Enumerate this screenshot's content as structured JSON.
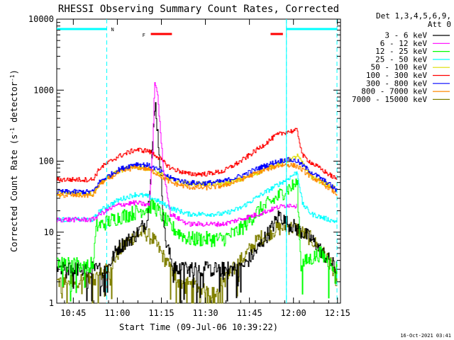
{
  "chart_data": {
    "type": "line",
    "title": "RHESSI Observing Summary Count Rates, Corrected",
    "xlabel": "Start Time (09-Jul-06 10:39:22)",
    "ylabel_main": "Corrected Count Rate (s",
    "ylabel_sup1": "-1",
    "ylabel_mid": " detector",
    "ylabel_sup2": "-1",
    "ylabel_end": ")",
    "timestamp": "16-Oct-2021 03:41",
    "legend_header_line1": "Det 1,3,4,5,6,9,",
    "legend_header_line2": "Att 0",
    "xlim": [
      10.656,
      12.267
    ],
    "ylim": [
      1,
      10000
    ],
    "yscale": "log",
    "x_ticks": [
      {
        "t": 10.75,
        "label": "10:45"
      },
      {
        "t": 11.0,
        "label": "11:00"
      },
      {
        "t": 11.25,
        "label": "11:15"
      },
      {
        "t": 11.5,
        "label": "11:30"
      },
      {
        "t": 11.75,
        "label": "11:45"
      },
      {
        "t": 12.0,
        "label": "12:00"
      },
      {
        "t": 12.25,
        "label": "12:15"
      }
    ],
    "y_ticks": [
      {
        "v": 1,
        "label": "1"
      },
      {
        "v": 10,
        "label": "10"
      },
      {
        "v": 100,
        "label": "100"
      },
      {
        "v": 1000,
        "label": "1000"
      },
      {
        "v": 10000,
        "label": "10000"
      }
    ],
    "annotations": {
      "night_label": "N",
      "flare_label": "F",
      "night_intervals": [
        [
          10.656,
          10.94
        ],
        [
          11.96,
          12.247
        ]
      ],
      "flare_intervals": [
        [
          11.19,
          11.31
        ],
        [
          11.87,
          11.94
        ]
      ],
      "saa_lines": [
        10.94,
        11.96,
        12.247
      ]
    },
    "series": [
      {
        "name": "3 - 6 keV",
        "color": "#000000",
        "points": [
          [
            10.656,
            3
          ],
          [
            10.94,
            3
          ],
          [
            11.0,
            6
          ],
          [
            11.1,
            9
          ],
          [
            11.17,
            15
          ],
          [
            11.2,
            200
          ],
          [
            11.215,
            650
          ],
          [
            11.24,
            100
          ],
          [
            11.27,
            8
          ],
          [
            11.32,
            3
          ],
          [
            11.7,
            3
          ],
          [
            11.8,
            6
          ],
          [
            11.88,
            12
          ],
          [
            11.92,
            18
          ],
          [
            11.95,
            14
          ],
          [
            12.0,
            12
          ],
          [
            12.1,
            8
          ],
          [
            12.2,
            4
          ],
          [
            12.247,
            3
          ]
        ]
      },
      {
        "name": "6 - 12 keV",
        "color": "#ff00ff",
        "points": [
          [
            10.656,
            15
          ],
          [
            10.86,
            15
          ],
          [
            10.9,
            18
          ],
          [
            11.0,
            24
          ],
          [
            11.1,
            26
          ],
          [
            11.18,
            24
          ],
          [
            11.2,
            150
          ],
          [
            11.21,
            1300
          ],
          [
            11.225,
            1000
          ],
          [
            11.26,
            80
          ],
          [
            11.3,
            18
          ],
          [
            11.4,
            13
          ],
          [
            11.6,
            13
          ],
          [
            11.8,
            18
          ],
          [
            11.9,
            22
          ],
          [
            11.96,
            24
          ],
          [
            12.0,
            24
          ],
          [
            12.02,
            23
          ]
        ]
      },
      {
        "name": "12 - 25 keV",
        "color": "#00ff00",
        "points": [
          [
            10.656,
            3.5
          ],
          [
            10.86,
            3.5
          ],
          [
            10.88,
            12
          ],
          [
            11.0,
            16
          ],
          [
            11.1,
            19
          ],
          [
            11.17,
            22
          ],
          [
            11.2,
            24
          ],
          [
            11.23,
            20
          ],
          [
            11.3,
            12
          ],
          [
            11.4,
            8
          ],
          [
            11.6,
            8
          ],
          [
            11.7,
            11
          ],
          [
            11.8,
            20
          ],
          [
            11.9,
            30
          ],
          [
            11.96,
            40
          ],
          [
            12.0,
            45
          ],
          [
            12.02,
            50
          ],
          [
            12.04,
            3.5
          ],
          [
            12.15,
            5
          ],
          [
            12.247,
            3
          ]
        ]
      },
      {
        "name": "25 - 50 keV",
        "color": "#00ffff",
        "points": [
          [
            10.656,
            15
          ],
          [
            10.86,
            15
          ],
          [
            10.9,
            20
          ],
          [
            11.0,
            28
          ],
          [
            11.1,
            34
          ],
          [
            11.17,
            32
          ],
          [
            11.2,
            30
          ],
          [
            11.3,
            22
          ],
          [
            11.4,
            18
          ],
          [
            11.6,
            18
          ],
          [
            11.7,
            22
          ],
          [
            11.8,
            32
          ],
          [
            11.9,
            45
          ],
          [
            11.96,
            55
          ],
          [
            12.0,
            65
          ],
          [
            12.02,
            70
          ],
          [
            12.05,
            25
          ],
          [
            12.1,
            18
          ],
          [
            12.2,
            15
          ],
          [
            12.247,
            14
          ]
        ]
      },
      {
        "name": "50 - 100 keV",
        "color": "#dddd00",
        "points": [
          [
            10.656,
            35
          ],
          [
            10.86,
            35
          ],
          [
            10.9,
            50
          ],
          [
            11.0,
            72
          ],
          [
            11.1,
            85
          ],
          [
            11.17,
            78
          ],
          [
            11.22,
            70
          ],
          [
            11.3,
            55
          ],
          [
            11.4,
            48
          ],
          [
            11.6,
            48
          ],
          [
            11.7,
            55
          ],
          [
            11.8,
            70
          ],
          [
            11.9,
            90
          ],
          [
            11.96,
            100
          ],
          [
            12.0,
            110
          ],
          [
            12.02,
            120
          ],
          [
            12.1,
            60
          ],
          [
            12.2,
            45
          ],
          [
            12.247,
            40
          ]
        ]
      },
      {
        "name": "100 - 300 keV",
        "color": "#ff0000",
        "points": [
          [
            10.656,
            55
          ],
          [
            10.86,
            55
          ],
          [
            10.9,
            80
          ],
          [
            11.0,
            115
          ],
          [
            11.1,
            145
          ],
          [
            11.17,
            140
          ],
          [
            11.22,
            120
          ],
          [
            11.3,
            80
          ],
          [
            11.4,
            66
          ],
          [
            11.5,
            66
          ],
          [
            11.6,
            72
          ],
          [
            11.7,
            100
          ],
          [
            11.8,
            150
          ],
          [
            11.9,
            230
          ],
          [
            11.96,
            260
          ],
          [
            12.02,
            270
          ],
          [
            12.05,
            120
          ],
          [
            12.1,
            95
          ],
          [
            12.2,
            65
          ],
          [
            12.247,
            55
          ]
        ]
      },
      {
        "name": "300 - 800 keV",
        "color": "#0000ff",
        "points": [
          [
            10.656,
            37
          ],
          [
            10.86,
            37
          ],
          [
            10.9,
            52
          ],
          [
            11.0,
            75
          ],
          [
            11.1,
            92
          ],
          [
            11.17,
            88
          ],
          [
            11.22,
            78
          ],
          [
            11.3,
            58
          ],
          [
            11.4,
            50
          ],
          [
            11.5,
            49
          ],
          [
            11.6,
            52
          ],
          [
            11.7,
            62
          ],
          [
            11.8,
            80
          ],
          [
            11.9,
            98
          ],
          [
            11.96,
            105
          ],
          [
            12.02,
            100
          ],
          [
            12.1,
            70
          ],
          [
            12.2,
            48
          ],
          [
            12.247,
            38
          ]
        ]
      },
      {
        "name": "800 - 7000 keV",
        "color": "#ff8800",
        "points": [
          [
            10.656,
            33
          ],
          [
            10.86,
            33
          ],
          [
            10.9,
            48
          ],
          [
            11.0,
            68
          ],
          [
            11.1,
            82
          ],
          [
            11.17,
            78
          ],
          [
            11.22,
            68
          ],
          [
            11.3,
            50
          ],
          [
            11.4,
            43
          ],
          [
            11.5,
            42
          ],
          [
            11.6,
            45
          ],
          [
            11.7,
            55
          ],
          [
            11.8,
            70
          ],
          [
            11.9,
            85
          ],
          [
            11.96,
            90
          ],
          [
            12.02,
            85
          ],
          [
            12.1,
            60
          ],
          [
            12.2,
            42
          ],
          [
            12.247,
            34
          ]
        ]
      },
      {
        "name": "7000 - 15000 keV",
        "color": "#808000",
        "points": [
          [
            10.656,
            2
          ],
          [
            10.86,
            2.2
          ],
          [
            10.9,
            2.5
          ],
          [
            10.95,
            3
          ],
          [
            11.0,
            5
          ],
          [
            11.05,
            7
          ],
          [
            11.1,
            9
          ],
          [
            11.15,
            10
          ],
          [
            11.2,
            8
          ],
          [
            11.25,
            5
          ],
          [
            11.3,
            3
          ],
          [
            11.35,
            2
          ],
          [
            11.55,
            1.5
          ],
          [
            11.6,
            2
          ],
          [
            11.7,
            4
          ],
          [
            11.8,
            8
          ],
          [
            11.9,
            11
          ],
          [
            11.96,
            12
          ],
          [
            12.02,
            11
          ],
          [
            12.1,
            8
          ],
          [
            12.2,
            4
          ],
          [
            12.247,
            2
          ]
        ]
      }
    ]
  }
}
